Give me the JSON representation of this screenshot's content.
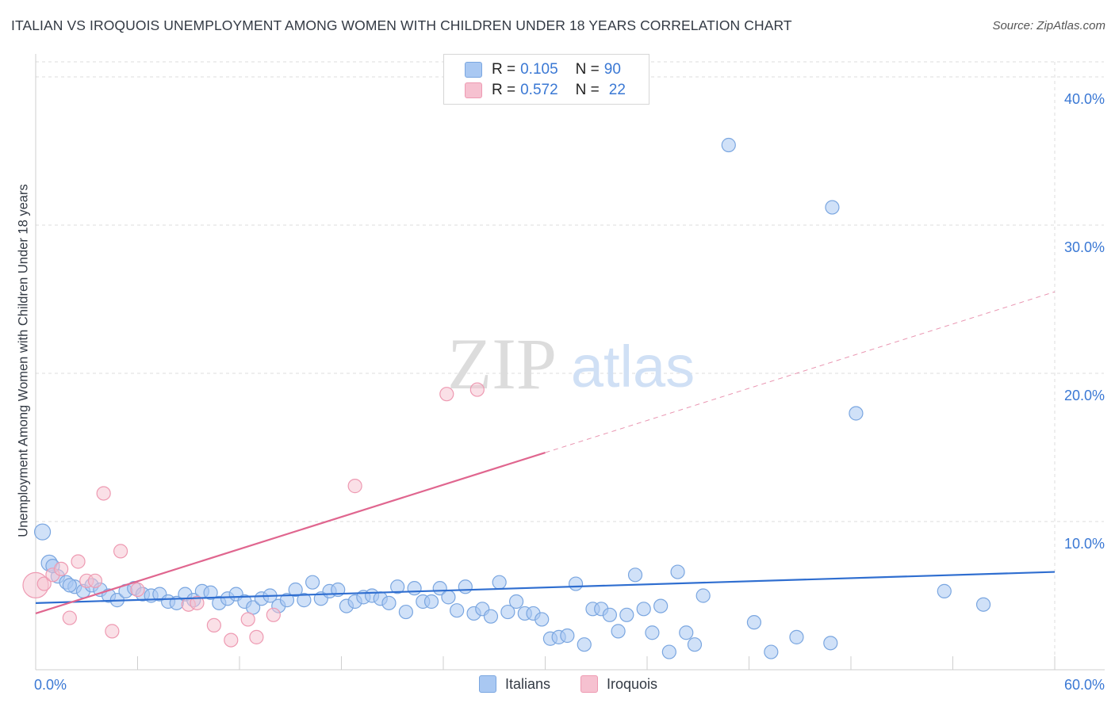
{
  "title": "ITALIAN VS IROQUOIS UNEMPLOYMENT AMONG WOMEN WITH CHILDREN UNDER 18 YEARS CORRELATION CHART",
  "source": "Source: ZipAtlas.com",
  "watermark": {
    "zip": "ZIP",
    "atlas": "atlas"
  },
  "colors": {
    "italians_fill": "#a9c8f2",
    "italians_stroke": "#7aa6e0",
    "italians_line": "#2f6ed0",
    "iroquois_fill": "#f6c1d0",
    "iroquois_stroke": "#ee9ab2",
    "iroquois_line": "#e0668f",
    "axis_text": "#3a78d4",
    "grid": "#dcdcdc"
  },
  "legend": {
    "rows": [
      {
        "r_label": "R =",
        "r_value": "0.105",
        "n_label": "N =",
        "n_value": "90"
      },
      {
        "r_label": "R =",
        "r_value": "0.572",
        "n_label": "N =",
        "n_value": "22"
      }
    ]
  },
  "bottom_legend": {
    "italians": "Italians",
    "iroquois": "Iroquois"
  },
  "chart_data": {
    "type": "scatter",
    "title": "ITALIAN VS IROQUOIS UNEMPLOYMENT AMONG WOMEN WITH CHILDREN UNDER 18 YEARS CORRELATION CHART",
    "xlabel": "",
    "ylabel": "Unemployment Among Women with Children Under 18 years",
    "xlim": [
      0,
      60
    ],
    "ylim": [
      0,
      40
    ],
    "x_tick_labels": [
      "0.0%",
      "60.0%"
    ],
    "y_ticks": [
      10,
      20,
      30,
      40
    ],
    "y_tick_labels": [
      "10.0%",
      "20.0%",
      "30.0%",
      "40.0%"
    ],
    "grid": true,
    "legend_position": "top-center",
    "series": [
      {
        "name": "Italians",
        "R": 0.105,
        "N": 90,
        "trend": {
          "x": [
            0,
            60
          ],
          "y": [
            4.5,
            6.6
          ],
          "dashed_from": null
        },
        "points": [
          [
            0.4,
            9.3
          ],
          [
            0.8,
            7.2
          ],
          [
            1.3,
            6.3
          ],
          [
            1.8,
            5.9
          ],
          [
            2.3,
            5.6
          ],
          [
            2.8,
            5.3
          ],
          [
            3.3,
            5.7
          ],
          [
            3.8,
            5.4
          ],
          [
            4.3,
            5.0
          ],
          [
            4.8,
            4.7
          ],
          [
            5.3,
            5.3
          ],
          [
            5.8,
            5.5
          ],
          [
            6.3,
            5.1
          ],
          [
            6.8,
            5.0
          ],
          [
            7.3,
            5.1
          ],
          [
            7.8,
            4.6
          ],
          [
            8.3,
            4.5
          ],
          [
            8.8,
            5.1
          ],
          [
            9.3,
            4.7
          ],
          [
            9.8,
            5.3
          ],
          [
            10.3,
            5.2
          ],
          [
            10.8,
            4.5
          ],
          [
            11.3,
            4.8
          ],
          [
            11.8,
            5.1
          ],
          [
            12.3,
            4.6
          ],
          [
            12.8,
            4.2
          ],
          [
            13.3,
            4.8
          ],
          [
            13.8,
            5.0
          ],
          [
            14.3,
            4.3
          ],
          [
            14.8,
            4.7
          ],
          [
            15.3,
            5.4
          ],
          [
            15.8,
            4.7
          ],
          [
            16.3,
            5.9
          ],
          [
            16.8,
            4.8
          ],
          [
            17.3,
            5.3
          ],
          [
            17.8,
            5.4
          ],
          [
            18.3,
            4.3
          ],
          [
            18.8,
            4.6
          ],
          [
            19.3,
            4.9
          ],
          [
            19.8,
            5.0
          ],
          [
            20.3,
            4.8
          ],
          [
            20.8,
            4.5
          ],
          [
            21.3,
            5.6
          ],
          [
            21.8,
            3.9
          ],
          [
            22.3,
            5.5
          ],
          [
            22.8,
            4.6
          ],
          [
            23.3,
            4.6
          ],
          [
            23.8,
            5.5
          ],
          [
            24.3,
            4.9
          ],
          [
            24.8,
            4.0
          ],
          [
            25.3,
            5.6
          ],
          [
            25.8,
            3.8
          ],
          [
            26.3,
            4.1
          ],
          [
            26.8,
            3.6
          ],
          [
            27.3,
            5.9
          ],
          [
            27.8,
            3.9
          ],
          [
            28.3,
            4.6
          ],
          [
            28.8,
            3.8
          ],
          [
            29.3,
            3.8
          ],
          [
            29.8,
            3.4
          ],
          [
            30.3,
            2.1
          ],
          [
            30.8,
            2.2
          ],
          [
            31.3,
            2.3
          ],
          [
            31.8,
            5.8
          ],
          [
            32.3,
            1.7
          ],
          [
            32.8,
            4.1
          ],
          [
            33.3,
            4.1
          ],
          [
            33.8,
            3.7
          ],
          [
            34.3,
            2.6
          ],
          [
            34.8,
            3.7
          ],
          [
            35.3,
            6.4
          ],
          [
            35.8,
            4.1
          ],
          [
            36.3,
            2.5
          ],
          [
            36.8,
            4.3
          ],
          [
            37.3,
            1.2
          ],
          [
            37.8,
            6.6
          ],
          [
            38.3,
            2.5
          ],
          [
            38.8,
            1.7
          ],
          [
            39.3,
            5.0
          ],
          [
            40.8,
            35.4
          ],
          [
            42.3,
            3.2
          ],
          [
            43.3,
            1.2
          ],
          [
            44.8,
            2.2
          ],
          [
            46.8,
            1.8
          ],
          [
            46.9,
            31.2
          ],
          [
            48.3,
            17.3
          ],
          [
            53.5,
            5.3
          ],
          [
            55.8,
            4.4
          ],
          [
            1.0,
            7.0
          ],
          [
            2.0,
            5.7
          ]
        ]
      },
      {
        "name": "Iroquois",
        "R": 0.572,
        "N": 22,
        "trend": {
          "x": [
            0,
            60
          ],
          "y": [
            3.8,
            25.5
          ],
          "dashed_from": 30
        },
        "points": [
          [
            0.0,
            5.7
          ],
          [
            0.5,
            5.8
          ],
          [
            1.0,
            6.4
          ],
          [
            1.5,
            6.8
          ],
          [
            2.0,
            3.5
          ],
          [
            2.5,
            7.3
          ],
          [
            3.0,
            6.0
          ],
          [
            3.5,
            6.0
          ],
          [
            4.0,
            11.9
          ],
          [
            4.5,
            2.6
          ],
          [
            5.0,
            8.0
          ],
          [
            6.0,
            5.4
          ],
          [
            9.0,
            4.4
          ],
          [
            9.5,
            4.5
          ],
          [
            10.5,
            3.0
          ],
          [
            11.5,
            2.0
          ],
          [
            12.5,
            3.4
          ],
          [
            13.0,
            2.2
          ],
          [
            14.0,
            3.7
          ],
          [
            18.8,
            12.4
          ],
          [
            24.2,
            18.6
          ],
          [
            26.0,
            18.9
          ]
        ]
      }
    ]
  }
}
